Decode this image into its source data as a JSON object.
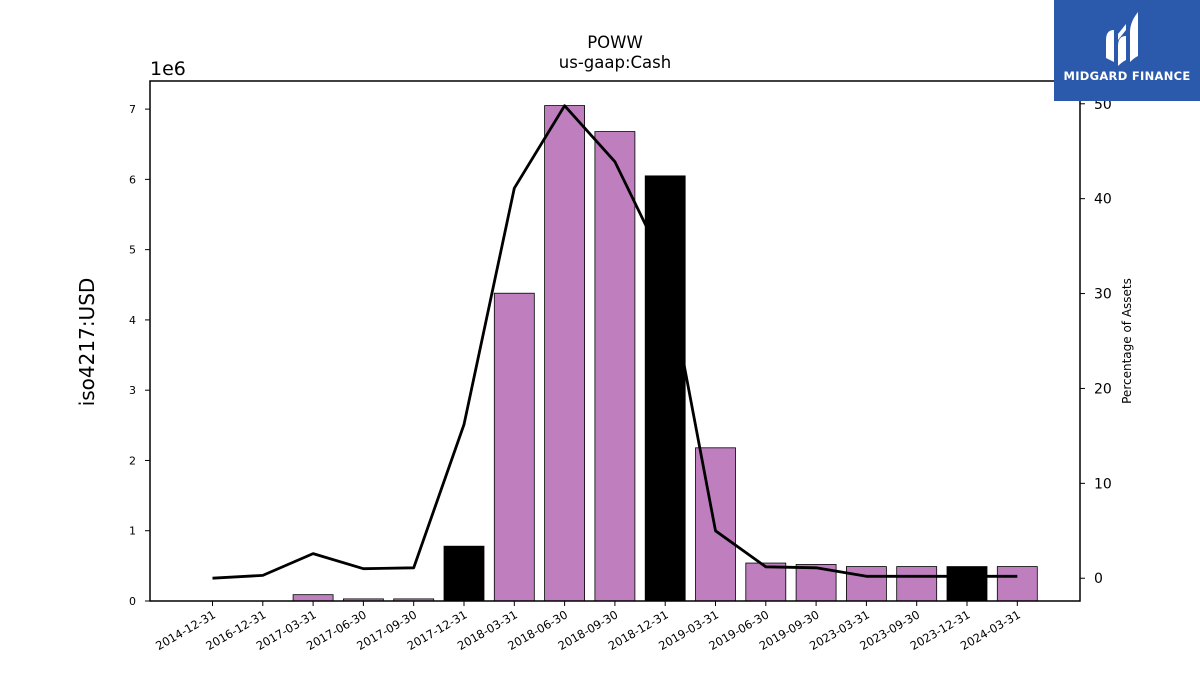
{
  "chart_data": {
    "type": "bar",
    "title": "POWW",
    "subtitle": "us-gaap:Cash",
    "ylabel": "iso4217:USD",
    "y2label": "Percentage of Assets",
    "y_multiplier_label": "1e6",
    "ylim": [
      0,
      7.4
    ],
    "y2lim": [
      -2.4,
      52.4
    ],
    "yticks": [
      "0",
      "1",
      "2",
      "3",
      "4",
      "5",
      "6",
      "7"
    ],
    "y2ticks": [
      "0",
      "10",
      "20",
      "30",
      "40",
      "50"
    ],
    "categories": [
      "2014-12-31",
      "2016-12-31",
      "2017-03-31",
      "2017-06-30",
      "2017-09-30",
      "2017-12-31",
      "2018-03-31",
      "2018-06-30",
      "2018-09-30",
      "2018-12-31",
      "2019-03-31",
      "2019-06-30",
      "2019-09-30",
      "2023-03-31",
      "2023-09-30",
      "2023-12-31",
      "2024-03-31"
    ],
    "series": [
      {
        "type": "bar",
        "values": [
          0,
          0,
          0.09,
          0.03,
          0.03,
          0.78,
          4.38,
          7.05,
          6.68,
          6.05,
          2.18,
          0.54,
          0.52,
          0.49,
          0.49,
          0.49,
          0.49
        ],
        "colors": [
          "#bf7fbf",
          "#bf7fbf",
          "#bf7fbf",
          "#bf7fbf",
          "#bf7fbf",
          "#000000",
          "#bf7fbf",
          "#bf7fbf",
          "#bf7fbf",
          "#000000",
          "#bf7fbf",
          "#bf7fbf",
          "#bf7fbf",
          "#bf7fbf",
          "#bf7fbf",
          "#000000",
          "#bf7fbf"
        ]
      },
      {
        "type": "line",
        "axis": "right",
        "values": [
          0.0,
          0.3,
          2.6,
          1.0,
          1.1,
          16.2,
          41.1,
          49.8,
          43.9,
          33.0,
          5.0,
          1.2,
          1.1,
          0.2,
          0.2,
          0.2,
          0.2
        ],
        "color": "#000000"
      }
    ],
    "grid": false,
    "legend": "none"
  },
  "logo": {
    "text": "MIDGARD FINANCE",
    "background": "#2b5aad"
  }
}
